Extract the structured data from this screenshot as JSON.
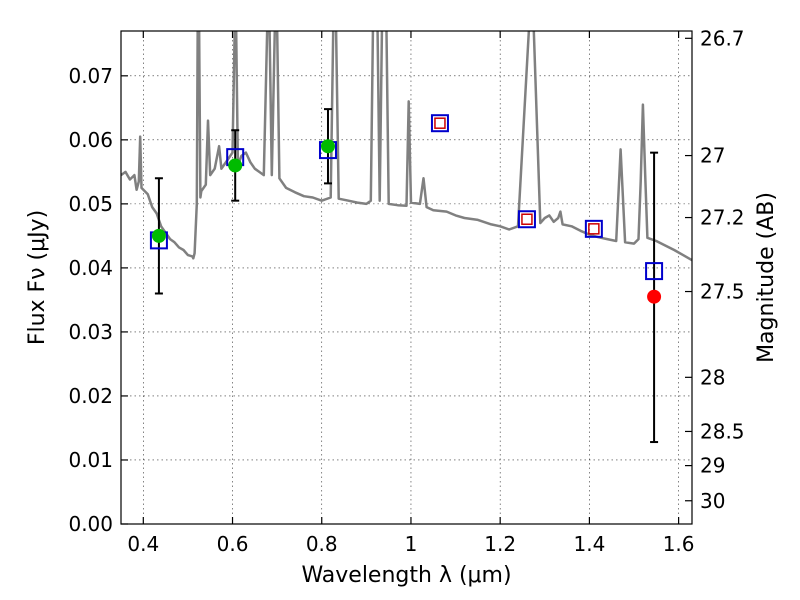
{
  "chart_data": {
    "type": "scatter",
    "xlabel": "Wavelength  λ (μm)",
    "ylabel": "Flux  Fν (μJy)",
    "ylabel_right": "Magnitude (AB)",
    "xlim": [
      0.35,
      1.63
    ],
    "ylim": [
      0.0,
      0.077
    ],
    "x_ticks": [
      "0.4",
      "0.6",
      "0.8",
      "1",
      "1.2",
      "1.4",
      "1.6"
    ],
    "x_tick_values": [
      0.4,
      0.6,
      0.8,
      1.0,
      1.2,
      1.4,
      1.6
    ],
    "y_ticks": [
      "0.00",
      "0.01",
      "0.02",
      "0.03",
      "0.04",
      "0.05",
      "0.06",
      "0.07"
    ],
    "y_tick_values": [
      0.0,
      0.01,
      0.02,
      0.03,
      0.04,
      0.05,
      0.06,
      0.07
    ],
    "mag_ticks": [
      "26.7",
      "27",
      "27.2",
      "27.5",
      "28",
      "28.5",
      "29",
      "30"
    ],
    "mag_tick_values": [
      26.7,
      27.0,
      27.2,
      27.5,
      28.0,
      28.5,
      29.0,
      30.0
    ],
    "grid": true,
    "colors": {
      "spectrum": "#808080",
      "detection": "#00bb00",
      "upper": "#ff0000",
      "model_box": "#0000cc",
      "predicted_box": "#cc0000"
    },
    "observed_detections": [
      {
        "x": 0.435,
        "y": 0.045,
        "yerr": 0.009
      },
      {
        "x": 0.606,
        "y": 0.056,
        "yerr": 0.0055
      },
      {
        "x": 0.814,
        "y": 0.059,
        "yerr": 0.0058
      }
    ],
    "observed_other": [
      {
        "x": 1.545,
        "y": 0.0355,
        "ylo": 0.0128,
        "yhi": 0.058
      }
    ],
    "model_band_flux": [
      {
        "x": 0.435,
        "y": 0.0443
      },
      {
        "x": 0.606,
        "y": 0.0573
      },
      {
        "x": 0.814,
        "y": 0.0584
      },
      {
        "x": 1.545,
        "y": 0.0395
      }
    ],
    "model_band_flux_predicted": [
      {
        "x": 1.065,
        "y": 0.0626
      },
      {
        "x": 1.26,
        "y": 0.0476
      },
      {
        "x": 1.41,
        "y": 0.0461
      }
    ],
    "spectrum": [
      [
        0.35,
        0.0545
      ],
      [
        0.36,
        0.055
      ],
      [
        0.37,
        0.0538
      ],
      [
        0.38,
        0.0545
      ],
      [
        0.385,
        0.0522
      ],
      [
        0.39,
        0.0535
      ],
      [
        0.393,
        0.0605
      ],
      [
        0.396,
        0.0525
      ],
      [
        0.41,
        0.0515
      ],
      [
        0.42,
        0.0495
      ],
      [
        0.43,
        0.0485
      ],
      [
        0.44,
        0.0465
      ],
      [
        0.45,
        0.0455
      ],
      [
        0.46,
        0.0445
      ],
      [
        0.47,
        0.044
      ],
      [
        0.48,
        0.0432
      ],
      [
        0.49,
        0.0428
      ],
      [
        0.5,
        0.042
      ],
      [
        0.51,
        0.0418
      ],
      [
        0.512,
        0.0415
      ],
      [
        0.515,
        0.0423
      ],
      [
        0.52,
        0.05
      ],
      [
        0.522,
        0.078
      ],
      [
        0.525,
        0.078
      ],
      [
        0.528,
        0.051
      ],
      [
        0.53,
        0.052
      ],
      [
        0.54,
        0.053
      ],
      [
        0.545,
        0.063
      ],
      [
        0.55,
        0.0545
      ],
      [
        0.56,
        0.0555
      ],
      [
        0.57,
        0.059
      ],
      [
        0.575,
        0.0555
      ],
      [
        0.58,
        0.056
      ],
      [
        0.59,
        0.057
      ],
      [
        0.6,
        0.058
      ],
      [
        0.605,
        0.078
      ],
      [
        0.608,
        0.078
      ],
      [
        0.612,
        0.056
      ],
      [
        0.62,
        0.0575
      ],
      [
        0.63,
        0.058
      ],
      [
        0.64,
        0.0565
      ],
      [
        0.65,
        0.0555
      ],
      [
        0.66,
        0.055
      ],
      [
        0.67,
        0.0545
      ],
      [
        0.678,
        0.078
      ],
      [
        0.683,
        0.078
      ],
      [
        0.688,
        0.0545
      ],
      [
        0.695,
        0.078
      ],
      [
        0.7,
        0.078
      ],
      [
        0.705,
        0.054
      ],
      [
        0.72,
        0.0525
      ],
      [
        0.74,
        0.0518
      ],
      [
        0.76,
        0.0512
      ],
      [
        0.78,
        0.051
      ],
      [
        0.8,
        0.0505
      ],
      [
        0.82,
        0.051
      ],
      [
        0.826,
        0.078
      ],
      [
        0.832,
        0.078
      ],
      [
        0.838,
        0.0508
      ],
      [
        0.86,
        0.0505
      ],
      [
        0.88,
        0.0502
      ],
      [
        0.9,
        0.05
      ],
      [
        0.91,
        0.0505
      ],
      [
        0.915,
        0.078
      ],
      [
        0.925,
        0.078
      ],
      [
        0.93,
        0.0505
      ],
      [
        0.935,
        0.078
      ],
      [
        0.945,
        0.078
      ],
      [
        0.95,
        0.05
      ],
      [
        0.97,
        0.0498
      ],
      [
        0.99,
        0.0497
      ],
      [
        0.995,
        0.066
      ],
      [
        1.0,
        0.0502
      ],
      [
        1.02,
        0.05
      ],
      [
        1.028,
        0.054
      ],
      [
        1.035,
        0.0495
      ],
      [
        1.05,
        0.049
      ],
      [
        1.08,
        0.0488
      ],
      [
        1.1,
        0.0482
      ],
      [
        1.12,
        0.0478
      ],
      [
        1.15,
        0.0475
      ],
      [
        1.18,
        0.0468
      ],
      [
        1.2,
        0.0465
      ],
      [
        1.22,
        0.046
      ],
      [
        1.24,
        0.0465
      ],
      [
        1.265,
        0.078
      ],
      [
        1.275,
        0.078
      ],
      [
        1.29,
        0.047
      ],
      [
        1.3,
        0.0478
      ],
      [
        1.31,
        0.0482
      ],
      [
        1.32,
        0.0472
      ],
      [
        1.33,
        0.0478
      ],
      [
        1.335,
        0.0488
      ],
      [
        1.34,
        0.0468
      ],
      [
        1.36,
        0.0465
      ],
      [
        1.38,
        0.0458
      ],
      [
        1.4,
        0.0452
      ],
      [
        1.42,
        0.0448
      ],
      [
        1.44,
        0.0445
      ],
      [
        1.46,
        0.0442
      ],
      [
        1.47,
        0.0585
      ],
      [
        1.48,
        0.044
      ],
      [
        1.5,
        0.0438
      ],
      [
        1.51,
        0.0445
      ],
      [
        1.515,
        0.0535
      ],
      [
        1.52,
        0.0655
      ],
      [
        1.525,
        0.0545
      ],
      [
        1.53,
        0.0447
      ],
      [
        1.55,
        0.0442
      ],
      [
        1.57,
        0.0435
      ],
      [
        1.59,
        0.0428
      ],
      [
        1.61,
        0.042
      ],
      [
        1.63,
        0.0412
      ]
    ]
  }
}
